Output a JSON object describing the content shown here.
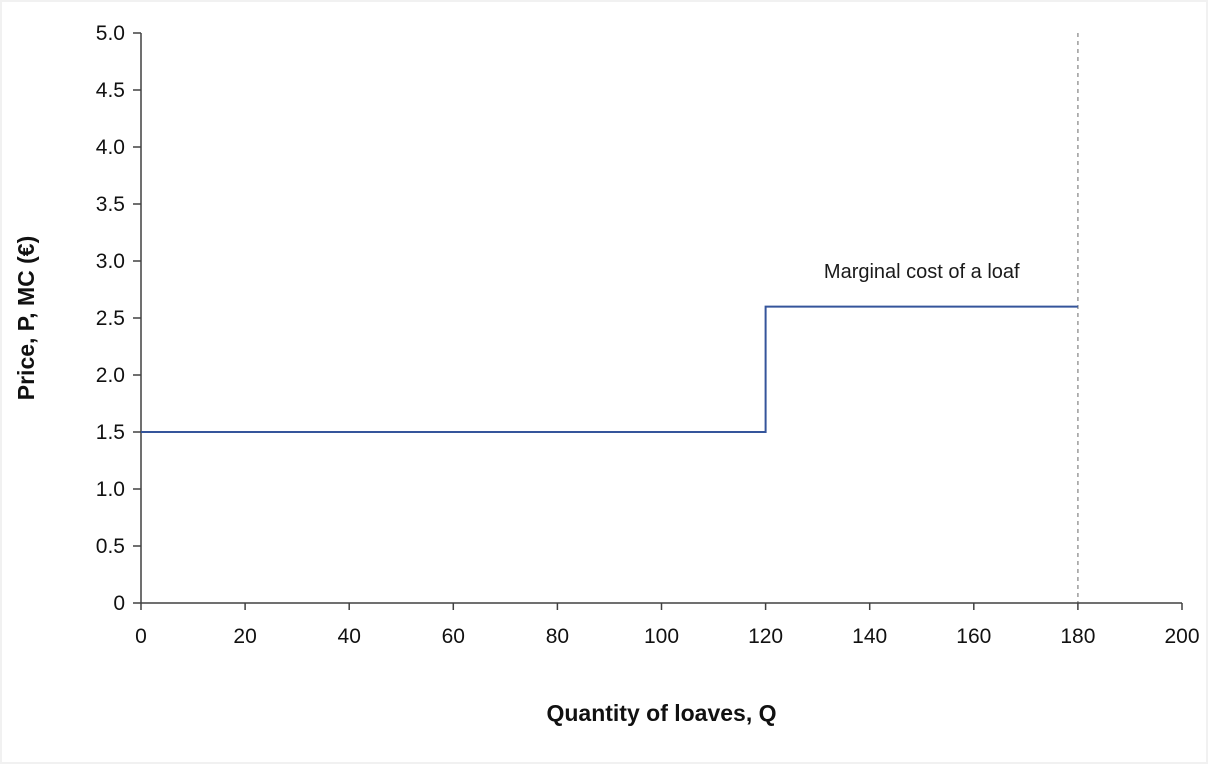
{
  "chart_data": {
    "type": "line",
    "title": "",
    "xlabel": "Quantity of loaves, Q",
    "ylabel": "Price, P, MC (€)",
    "xlim": [
      0,
      200
    ],
    "ylim": [
      0,
      5
    ],
    "grid": false,
    "legend": "none",
    "x_ticks": [
      0,
      20,
      40,
      60,
      80,
      100,
      120,
      140,
      160,
      180,
      200
    ],
    "x_tick_labels": [
      "0",
      "20",
      "40",
      "60",
      "80",
      "100",
      "120",
      "140",
      "160",
      "180",
      "200"
    ],
    "y_tick_values": [
      0,
      0.5,
      1.0,
      1.5,
      2.0,
      2.5,
      3.0,
      3.5,
      4.0,
      4.5,
      5.0
    ],
    "y_tick_labels": [
      "0",
      "0.5",
      "1.0",
      "1.5",
      "2.0",
      "2.5",
      "3.0",
      "3.5",
      "4.0",
      "4.5",
      "5.0"
    ],
    "series": [
      {
        "name": "Marginal cost of a loaf",
        "color": "#35559b",
        "step": true,
        "points": [
          [
            0,
            1.5
          ],
          [
            120,
            1.5
          ],
          [
            120,
            2.6
          ],
          [
            180,
            2.6
          ]
        ]
      }
    ],
    "annotations": [
      {
        "text": "Marginal cost of a loaf",
        "x": 150,
        "y": 2.85
      }
    ],
    "reference_lines": [
      {
        "type": "vertical",
        "x": 180,
        "y_from": 0,
        "y_to": 5,
        "style": "dashed",
        "color": "#9c9c9c"
      }
    ],
    "axis_color": "#404040",
    "text_color": "#111111",
    "annotation_color": "#1a1a1a"
  }
}
